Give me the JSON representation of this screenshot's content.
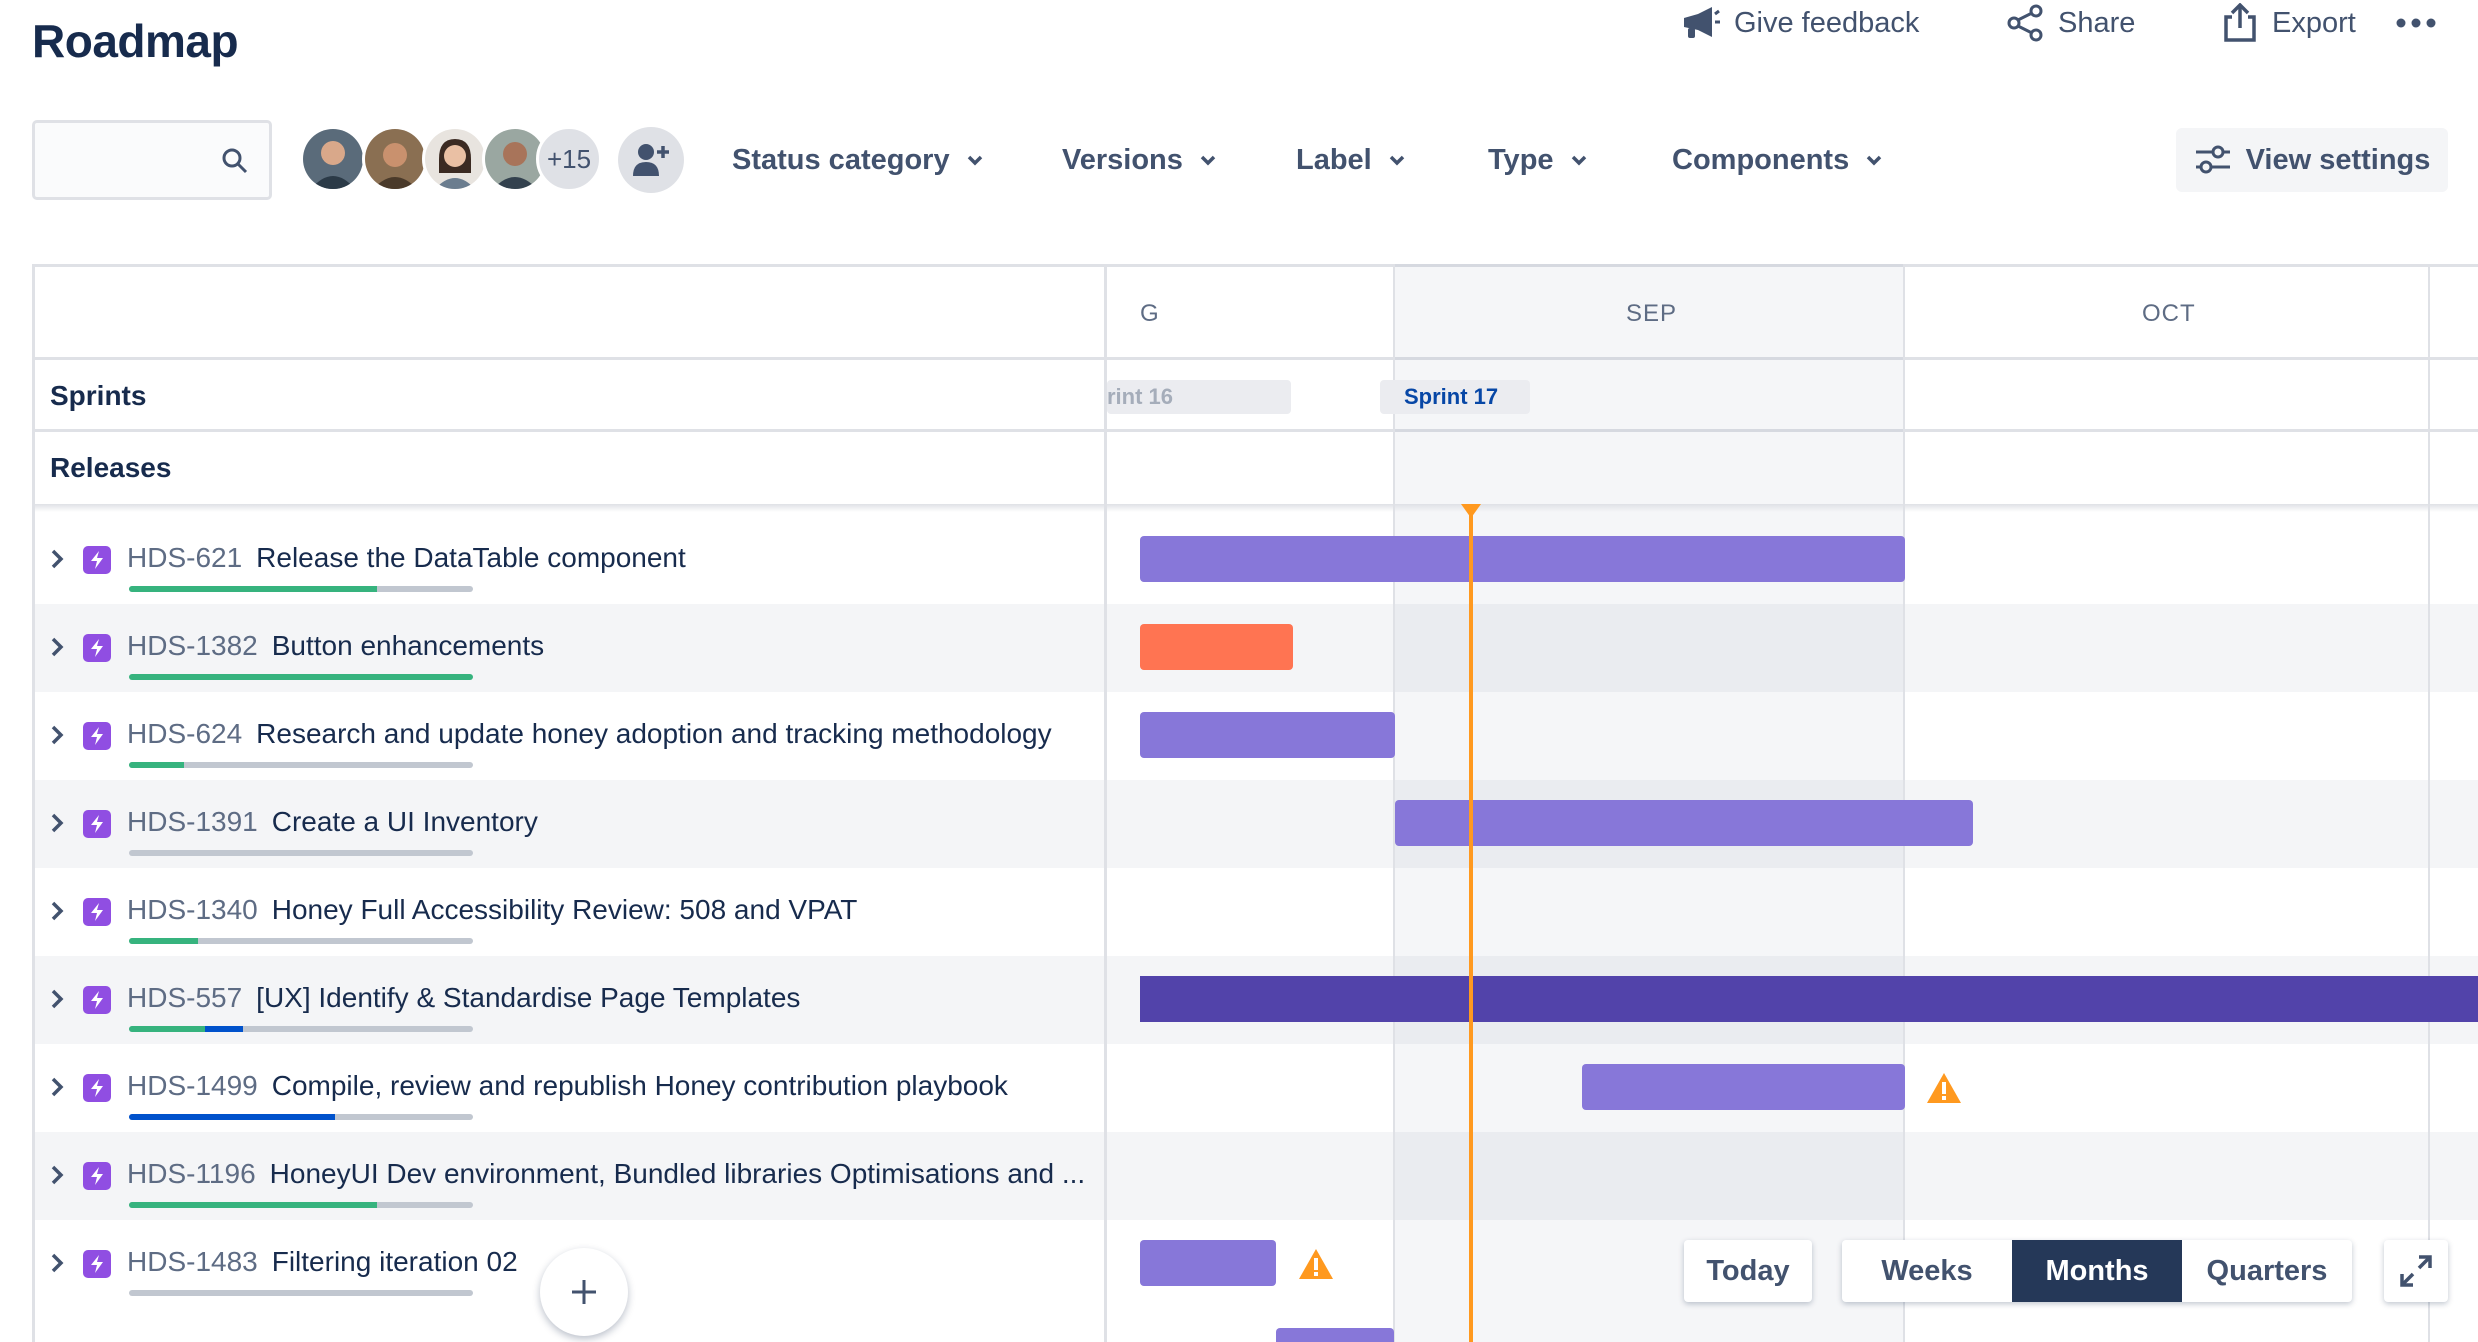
{
  "header": {
    "title": "Roadmap",
    "actions": [
      {
        "id": "feedback",
        "label": "Give feedback",
        "icon": "megaphone-icon"
      },
      {
        "id": "share",
        "label": "Share",
        "icon": "share-icon"
      },
      {
        "id": "export",
        "label": "Export",
        "icon": "export-icon"
      }
    ],
    "more_icon": "more-icon"
  },
  "toolbar": {
    "search_placeholder": "",
    "avatars_more": "+15",
    "filters": [
      "Status category",
      "Versions",
      "Label",
      "Type",
      "Components"
    ],
    "view_settings": "View settings"
  },
  "timeline": {
    "months": [
      "G",
      "SEP",
      "OCT"
    ],
    "rows": {
      "sprints": "Sprints",
      "releases": "Releases"
    },
    "sprints": [
      {
        "label": "rint 16",
        "current": false
      },
      {
        "label": "Sprint 17",
        "current": true
      }
    ]
  },
  "issues": [
    {
      "key": "HDS-621",
      "summary": "Release the DataTable component",
      "done": 0.72,
      "inprogress": 0
    },
    {
      "key": "HDS-1382",
      "summary": "Button enhancements",
      "done": 1.0,
      "inprogress": 0
    },
    {
      "key": "HDS-624",
      "summary": "Research and update honey adoption and tracking methodology",
      "done": 0.16,
      "inprogress": 0
    },
    {
      "key": "HDS-1391",
      "summary": "Create a UI Inventory",
      "done": 0,
      "inprogress": 0
    },
    {
      "key": "HDS-1340",
      "summary": "Honey Full Accessibility Review: 508 and VPAT",
      "done": 0.2,
      "inprogress": 0
    },
    {
      "key": "HDS-557",
      "summary": "[UX] Identify & Standardise Page Templates",
      "done": 0.22,
      "inprogress": 0.11
    },
    {
      "key": "HDS-1499",
      "summary": "Compile, review and republish Honey contribution playbook",
      "done": 0,
      "inprogress": 0.6
    },
    {
      "key": "HDS-1196",
      "summary": "HoneyUI Dev environment, Bundled libraries Optimisations and ...",
      "done": 0.72,
      "inprogress": 0
    },
    {
      "key": "HDS-1483",
      "summary": "Filtering iteration 02",
      "done": 0,
      "inprogress": 0
    }
  ],
  "colors": {
    "bar": "#8777d9",
    "bar_selected": "#5243aa",
    "bar_overdue": "#ff7452",
    "today": "#ff991f",
    "warning": "#ff991f",
    "epic": "#904ee2"
  },
  "controls": {
    "today": "Today",
    "scales": [
      "Weeks",
      "Months",
      "Quarters"
    ],
    "active_scale": "Months"
  }
}
